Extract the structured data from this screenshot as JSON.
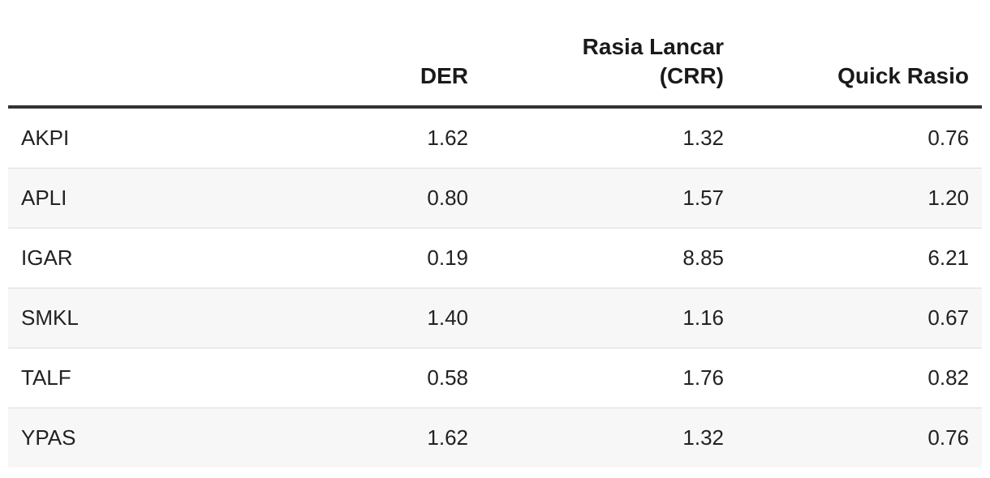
{
  "table": {
    "headers": {
      "name": "",
      "der": "DER",
      "crr_line1": "Rasia Lancar",
      "crr_line2": "(CRR)",
      "quick": "Quick Rasio"
    },
    "rows": [
      {
        "name": "AKPI",
        "der": "1.62",
        "crr": "1.32",
        "quick": "0.76"
      },
      {
        "name": "APLI",
        "der": "0.80",
        "crr": "1.57",
        "quick": "1.20"
      },
      {
        "name": "IGAR",
        "der": "0.19",
        "crr": "8.85",
        "quick": "6.21"
      },
      {
        "name": "SMKL",
        "der": "1.40",
        "crr": "1.16",
        "quick": "0.67"
      },
      {
        "name": "TALF",
        "der": "0.58",
        "crr": "1.76",
        "quick": "0.82"
      },
      {
        "name": "YPAS",
        "der": "1.62",
        "crr": "1.32",
        "quick": "0.76"
      }
    ]
  }
}
